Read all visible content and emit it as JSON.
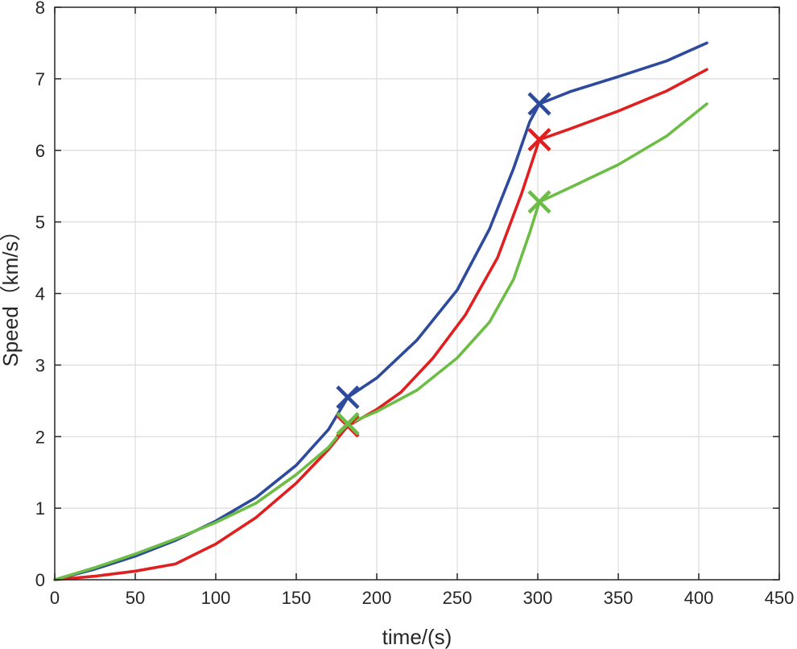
{
  "chart_data": {
    "type": "line",
    "xlabel": "time/(s)",
    "ylabel": "Speed（km/s）",
    "xlim": [
      0,
      450
    ],
    "ylim": [
      0,
      8
    ],
    "xticks": [
      0,
      50,
      100,
      150,
      200,
      250,
      300,
      350,
      400,
      450
    ],
    "yticks": [
      0,
      1,
      2,
      3,
      4,
      5,
      6,
      7,
      8
    ],
    "grid": true,
    "legend": "none",
    "series": [
      {
        "color": "#2e4a9c",
        "x": [
          0,
          25,
          50,
          75,
          100,
          125,
          150,
          170,
          182,
          200,
          225,
          250,
          270,
          285,
          295,
          301,
          320,
          350,
          380,
          405
        ],
        "y": [
          0,
          0.15,
          0.33,
          0.55,
          0.82,
          1.15,
          1.6,
          2.1,
          2.55,
          2.82,
          3.35,
          4.05,
          4.9,
          5.75,
          6.4,
          6.65,
          6.82,
          7.03,
          7.25,
          7.5
        ],
        "markers": [
          {
            "x": 182,
            "y": 2.55
          },
          {
            "x": 301,
            "y": 6.65
          }
        ]
      },
      {
        "color": "#e02020",
        "x": [
          0,
          25,
          50,
          75,
          100,
          125,
          150,
          170,
          182,
          200,
          215,
          235,
          255,
          275,
          290,
          301,
          320,
          350,
          380,
          405
        ],
        "y": [
          0,
          0.05,
          0.12,
          0.22,
          0.5,
          0.87,
          1.35,
          1.82,
          2.15,
          2.38,
          2.62,
          3.1,
          3.7,
          4.5,
          5.4,
          6.15,
          6.3,
          6.55,
          6.83,
          7.13
        ],
        "markers": [
          {
            "x": 182,
            "y": 2.15
          },
          {
            "x": 301,
            "y": 6.15
          }
        ]
      },
      {
        "color": "#6cbd45",
        "x": [
          0,
          25,
          50,
          75,
          100,
          125,
          150,
          170,
          182,
          200,
          225,
          250,
          270,
          285,
          295,
          301,
          320,
          350,
          380,
          405
        ],
        "y": [
          0,
          0.17,
          0.36,
          0.57,
          0.8,
          1.07,
          1.47,
          1.85,
          2.18,
          2.35,
          2.65,
          3.1,
          3.6,
          4.2,
          4.85,
          5.28,
          5.48,
          5.8,
          6.2,
          6.65
        ],
        "markers": [
          {
            "x": 182,
            "y": 2.18
          },
          {
            "x": 301,
            "y": 5.28
          }
        ]
      }
    ]
  }
}
